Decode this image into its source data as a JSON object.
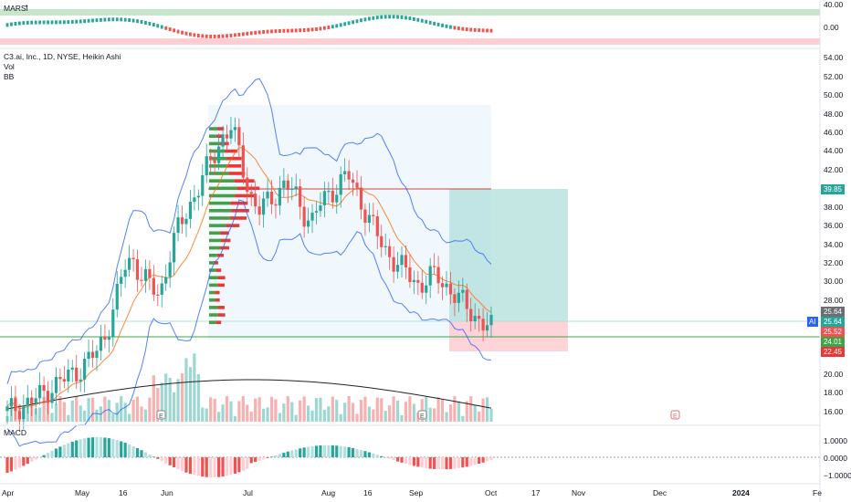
{
  "rsi_pane": {
    "label": "MARSI",
    "ticks": [
      "40.00",
      "0.00"
    ]
  },
  "main_pane": {
    "symbol_line": "C3.ai, Inc., 1D, NYSE, Heikin Ashi",
    "vol_label": "Vol",
    "bb_label": "BB",
    "ticks": [
      "54.00",
      "52.00",
      "50.00",
      "48.00",
      "46.00",
      "44.00",
      "42.00",
      "40.00",
      "38.00",
      "36.00",
      "34.00",
      "32.00",
      "30.00",
      "28.00",
      "20.00",
      "18.00",
      "16.00"
    ],
    "tags": {
      "target": "39.85",
      "last_grey": "25.64",
      "last_green": "25.64",
      "symbol": "AI",
      "red_1": "25.52",
      "green_2": "24.01",
      "red_2": "22.45"
    }
  },
  "macd_pane": {
    "label": "MACD",
    "ticks": [
      "1.0000",
      "0.0000",
      "−1.0000"
    ]
  },
  "x_axis": {
    "labels": [
      "Apr",
      "May",
      "16",
      "Jun",
      "Jul",
      "Aug",
      "16",
      "Sep",
      "Oct",
      "17",
      "Nov",
      "Dec",
      "2024",
      "Fe"
    ]
  },
  "colors": {
    "up": "#26a69a",
    "down": "#ef5350",
    "bb": "#2962ff",
    "basis": "#ff6d00"
  },
  "chart_data": {
    "type": "candlestick",
    "title": "C3.ai, Inc., 1D, NYSE, Heikin Ashi",
    "ylim": [
      15,
      55
    ],
    "price_series": [
      16.5,
      17,
      17.3,
      17.8,
      18.5,
      19.2,
      19.8,
      20.5,
      21,
      22,
      23,
      25,
      28,
      32,
      33,
      31,
      30,
      29,
      33,
      36,
      38,
      40,
      42,
      44,
      46,
      47,
      44,
      40,
      38,
      39,
      40,
      41,
      40,
      38,
      37,
      39,
      40,
      41,
      42,
      40,
      38,
      36,
      34,
      33,
      32,
      31,
      30,
      31,
      31,
      30,
      29,
      28,
      27,
      26,
      25.5
    ],
    "last_price": 25.64
  }
}
